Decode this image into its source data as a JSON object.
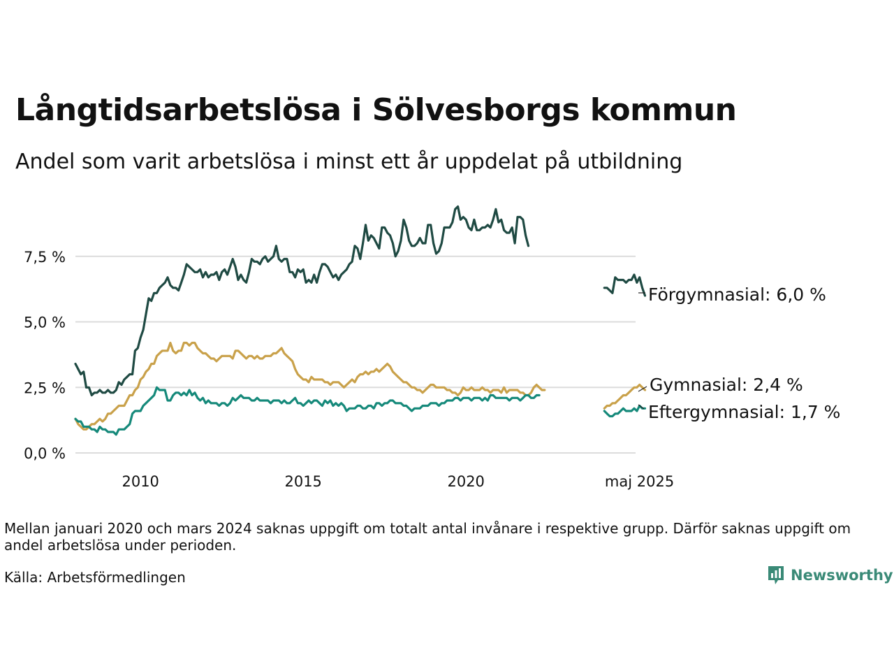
{
  "title": "Långtidsarbetslösa i Sölvesborgs kommun",
  "subtitle": "Andel som varit arbetslösa i minst ett år uppdelat på utbildning",
  "note": "Mellan januari 2020 och mars 2024 saknas uppgift om totalt antal invånare i respektive grupp. Därför saknas uppgift om andel arbetslösa under perioden.",
  "source": "Källa: Arbetsförmedlingen",
  "brand": {
    "name": "Newsworthy",
    "icon": "bar-chart-speech-bubble-icon",
    "color": "#3a8a77"
  },
  "chart_data": {
    "type": "line",
    "title": "Långtidsarbetslösa i Sölvesborgs kommun",
    "subtitle": "Andel som varit arbetslösa i minst ett år uppdelat på utbildning",
    "x_axis": {
      "ticks": [
        {
          "label": "2010",
          "t": 2010.0
        },
        {
          "label": "2015",
          "t": 2015.0
        },
        {
          "label": "2020",
          "t": 2020.0
        },
        {
          "label": "maj 2025",
          "t": 2025.33
        }
      ],
      "range": [
        "2008-01",
        "2025-05"
      ]
    },
    "y_axis": {
      "ticks": [
        {
          "label": "0,0 %",
          "value": 0
        },
        {
          "label": "2,5 %",
          "value": 2.5
        },
        {
          "label": "5,0 %",
          "value": 5.0
        },
        {
          "label": "7,5 %",
          "value": 7.5
        }
      ],
      "ylim": [
        0,
        9.4
      ],
      "unit": "%"
    },
    "grid": true,
    "legend": "direct labels at line ends (right)",
    "series": [
      {
        "name": "Förgymnasial",
        "end_label": "Förgymnasial: 6,0 %",
        "color": "#1f4a43",
        "segments": [
          {
            "start": "2008-01",
            "values": [
              3.4,
              3.2,
              3.0,
              3.1,
              2.5,
              2.5,
              2.2,
              2.3,
              2.3,
              2.4,
              2.3,
              2.3,
              2.4,
              2.3,
              2.3,
              2.4,
              2.7,
              2.6,
              2.8,
              2.9,
              3.0,
              3.0,
              3.9,
              4.0,
              4.4,
              4.7,
              5.3,
              5.9,
              5.8,
              6.1,
              6.1,
              6.3,
              6.4,
              6.5,
              6.7,
              6.4,
              6.3,
              6.3,
              6.2,
              6.5,
              6.8,
              7.2,
              7.1,
              7.0,
              6.9,
              6.9,
              7.0,
              6.7,
              6.9,
              6.7,
              6.8,
              6.8,
              6.9,
              6.6,
              6.9,
              7.0,
              6.8,
              7.1,
              7.4,
              7.1,
              6.6,
              6.8,
              6.6,
              6.5,
              6.9,
              7.4,
              7.3,
              7.3,
              7.2,
              7.4,
              7.5,
              7.3,
              7.4,
              7.5,
              7.9,
              7.4,
              7.3,
              7.4,
              7.4,
              6.9,
              6.9,
              6.7,
              7.0,
              6.9,
              7.0,
              6.5,
              6.6,
              6.5,
              6.8,
              6.5,
              6.9,
              7.2,
              7.2,
              7.1,
              6.9,
              6.7,
              6.8,
              6.6,
              6.8,
              6.9,
              7.0,
              7.2,
              7.3,
              7.9,
              7.8,
              7.4,
              8.0,
              8.7,
              8.1,
              8.3,
              8.2,
              8.0,
              7.8,
              8.6,
              8.6,
              8.4,
              8.3,
              8.0,
              7.5,
              7.7,
              8.1,
              8.9,
              8.6,
              8.1,
              7.9,
              7.9,
              8.0,
              8.2,
              8.0,
              8.0,
              8.7,
              8.7,
              8.0,
              7.6,
              7.7,
              8.0,
              8.6,
              8.6,
              8.6,
              8.8,
              9.3,
              9.4,
              8.9,
              9.0,
              8.9,
              8.6,
              8.5,
              8.9,
              8.5,
              8.5,
              8.6,
              8.6,
              8.7,
              8.6,
              8.9,
              9.3,
              8.8,
              8.9,
              8.5,
              8.4,
              8.4,
              8.6,
              8.0,
              9.0,
              9.0,
              8.9,
              8.3,
              7.9
            ]
          },
          {
            "start": "2024-04",
            "values": [
              6.3,
              6.3,
              6.2,
              6.1,
              6.7,
              6.6,
              6.6,
              6.6,
              6.5,
              6.6,
              6.6,
              6.8,
              6.5,
              6.7,
              6.3,
              6.0
            ]
          }
        ]
      },
      {
        "name": "Gymnasial",
        "end_label": "Gymnasial: 2,4 %",
        "color": "#c9a14a",
        "segments": [
          {
            "start": "2008-01",
            "values": [
              1.3,
              1.1,
              1.0,
              0.9,
              0.9,
              1.0,
              1.1,
              1.1,
              1.2,
              1.3,
              1.2,
              1.3,
              1.5,
              1.5,
              1.6,
              1.7,
              1.8,
              1.8,
              1.8,
              2.0,
              2.2,
              2.2,
              2.4,
              2.5,
              2.8,
              2.9,
              3.1,
              3.2,
              3.4,
              3.4,
              3.7,
              3.8,
              3.9,
              3.9,
              3.9,
              4.2,
              3.9,
              3.8,
              3.9,
              3.9,
              4.2,
              4.2,
              4.1,
              4.2,
              4.2,
              4.0,
              3.9,
              3.8,
              3.8,
              3.7,
              3.6,
              3.6,
              3.5,
              3.6,
              3.7,
              3.7,
              3.7,
              3.7,
              3.6,
              3.9,
              3.9,
              3.8,
              3.7,
              3.6,
              3.7,
              3.7,
              3.6,
              3.7,
              3.6,
              3.6,
              3.7,
              3.7,
              3.7,
              3.8,
              3.8,
              3.9,
              4.0,
              3.8,
              3.7,
              3.6,
              3.5,
              3.2,
              3.0,
              2.9,
              2.8,
              2.8,
              2.7,
              2.9,
              2.8,
              2.8,
              2.8,
              2.8,
              2.7,
              2.7,
              2.6,
              2.7,
              2.7,
              2.7,
              2.6,
              2.5,
              2.6,
              2.7,
              2.8,
              2.7,
              2.9,
              3.0,
              3.0,
              3.1,
              3.0,
              3.1,
              3.1,
              3.2,
              3.1,
              3.2,
              3.3,
              3.4,
              3.3,
              3.1,
              3.0,
              2.9,
              2.8,
              2.7,
              2.7,
              2.6,
              2.5,
              2.5,
              2.4,
              2.4,
              2.3,
              2.4,
              2.5,
              2.6,
              2.6,
              2.5,
              2.5,
              2.5,
              2.5,
              2.4,
              2.4,
              2.3,
              2.3,
              2.2,
              2.3,
              2.5,
              2.4,
              2.4,
              2.5,
              2.4,
              2.4,
              2.4,
              2.5,
              2.4,
              2.4,
              2.3,
              2.4,
              2.4,
              2.4,
              2.3,
              2.5,
              2.3,
              2.4,
              2.4,
              2.4,
              2.4,
              2.3,
              2.3,
              2.2,
              2.2,
              2.3,
              2.5,
              2.6,
              2.5,
              2.4,
              2.4
            ]
          },
          {
            "start": "2024-04",
            "values": [
              1.7,
              1.8,
              1.8,
              1.9,
              1.9,
              2.0,
              2.1,
              2.2,
              2.2,
              2.3,
              2.4,
              2.5,
              2.5,
              2.6,
              2.5,
              2.4
            ]
          }
        ]
      },
      {
        "name": "Eftergymnasial",
        "end_label": "Eftergymnasial: 1,7 %",
        "color": "#15897a",
        "segments": [
          {
            "start": "2008-01",
            "values": [
              1.3,
              1.2,
              1.2,
              1.0,
              1.0,
              1.0,
              0.9,
              0.9,
              0.8,
              1.0,
              0.9,
              0.9,
              0.8,
              0.8,
              0.8,
              0.7,
              0.9,
              0.9,
              0.9,
              1.0,
              1.1,
              1.5,
              1.6,
              1.6,
              1.6,
              1.8,
              1.9,
              2.0,
              2.1,
              2.2,
              2.5,
              2.4,
              2.4,
              2.4,
              2.0,
              2.0,
              2.2,
              2.3,
              2.3,
              2.2,
              2.3,
              2.2,
              2.4,
              2.2,
              2.3,
              2.1,
              2.0,
              2.1,
              1.9,
              2.0,
              1.9,
              1.9,
              1.9,
              1.8,
              1.9,
              1.9,
              1.8,
              1.9,
              2.1,
              2.0,
              2.1,
              2.2,
              2.1,
              2.1,
              2.1,
              2.0,
              2.0,
              2.1,
              2.0,
              2.0,
              2.0,
              2.0,
              1.9,
              2.0,
              2.0,
              2.0,
              1.9,
              2.0,
              1.9,
              1.9,
              2.0,
              2.1,
              1.9,
              1.9,
              1.8,
              1.9,
              2.0,
              1.9,
              2.0,
              2.0,
              1.9,
              1.8,
              2.0,
              1.9,
              2.0,
              1.8,
              1.9,
              1.8,
              1.9,
              1.8,
              1.6,
              1.7,
              1.7,
              1.7,
              1.8,
              1.8,
              1.7,
              1.7,
              1.8,
              1.8,
              1.7,
              1.9,
              1.9,
              1.8,
              1.9,
              1.9,
              2.0,
              2.0,
              1.9,
              1.9,
              1.9,
              1.8,
              1.8,
              1.7,
              1.6,
              1.7,
              1.7,
              1.7,
              1.8,
              1.8,
              1.8,
              1.9,
              1.9,
              1.9,
              1.8,
              1.9,
              1.9,
              2.0,
              2.0,
              2.0,
              2.1,
              2.1,
              2.0,
              2.1,
              2.1,
              2.1,
              2.0,
              2.1,
              2.1,
              2.1,
              2.0,
              2.1,
              2.0,
              2.2,
              2.2,
              2.1,
              2.1,
              2.1,
              2.1,
              2.1,
              2.0,
              2.1,
              2.1,
              2.1,
              2.0,
              2.1,
              2.2,
              2.2,
              2.1,
              2.1,
              2.2,
              2.2
            ]
          },
          {
            "start": "2024-04",
            "values": [
              1.6,
              1.5,
              1.4,
              1.4,
              1.5,
              1.5,
              1.6,
              1.7,
              1.6,
              1.6,
              1.6,
              1.7,
              1.6,
              1.8,
              1.7,
              1.7
            ]
          }
        ]
      }
    ]
  }
}
